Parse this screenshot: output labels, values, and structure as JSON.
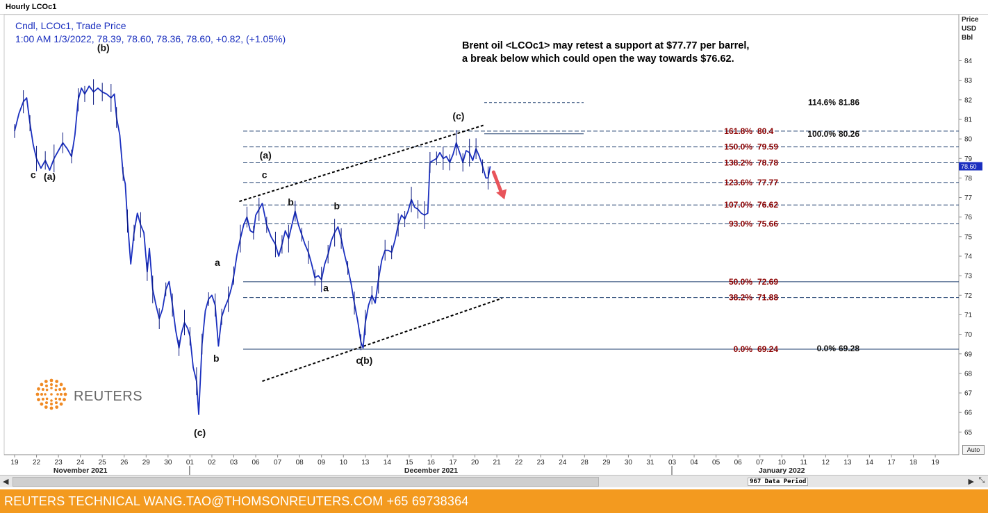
{
  "window": {
    "title": "Hourly LCOc1"
  },
  "legend": {
    "line1": "Cndl, LCOc1, Trade Price",
    "line2": "1:00 AM 1/3/2022, 78.39, 78.60, 78.36, 78.60, +0.82, (+1.05%)"
  },
  "commentary": {
    "line1": "Brent oil <LCOc1> may retest a support at $77.77 per barrel,",
    "line2": "a break below which could open the way towards $76.62."
  },
  "price_axis": {
    "label1": "Price",
    "label2": "USD",
    "label3": "Bbl",
    "last_value": "78.60"
  },
  "logo": {
    "text": "REUTERS"
  },
  "scrollbar": {
    "data_period": "967 Data Period",
    "left_arrow": "◀",
    "right_arrow": "▶",
    "resize": "⤡"
  },
  "footer": {
    "text": "REUTERS TECHNICAL  WANG.TAO@THOMSONREUTERS.COM  +65 69738364"
  },
  "auto_button": "Auto",
  "colors": {
    "series": "#1a2fbf",
    "projection_text": "#8b0000",
    "arrow": "#e8545a",
    "grid_line": "#1f3f6f",
    "footer_bg": "#f39a1f"
  },
  "chart_data": {
    "type": "candlestick-line",
    "title": "Hourly LCOc1",
    "ylabel": "Price USD Bbl",
    "ylim": [
      64.5,
      85.4
    ],
    "y_ticks": [
      65,
      66,
      67,
      68,
      69,
      70,
      71,
      72,
      73,
      74,
      75,
      76,
      77,
      78,
      79,
      80,
      81,
      82,
      83,
      84
    ],
    "x_days": [
      "19",
      "22",
      "23",
      "24",
      "25",
      "26",
      "29",
      "30",
      "01",
      "02",
      "03",
      "06",
      "07",
      "08",
      "09",
      "10",
      "13",
      "14",
      "15",
      "16",
      "17",
      "20",
      "21",
      "22",
      "23",
      "24",
      "28",
      "29",
      "30",
      "31",
      "03",
      "04",
      "05",
      "06",
      "07",
      "10",
      "11",
      "12",
      "13",
      "14",
      "17",
      "18",
      "19"
    ],
    "month_labels": [
      {
        "text": "November 2021",
        "at_day_index": 3
      },
      {
        "text": "December 2021",
        "at_day_index": 19
      },
      {
        "text": "January 2022",
        "at_day_index": 35
      }
    ],
    "month_separator_indexes": [
      8,
      30
    ],
    "series": [
      {
        "name": "LCOc1",
        "points": [
          [
            0,
            80.4
          ],
          [
            0.2,
            81.3
          ],
          [
            0.4,
            81.9
          ],
          [
            0.55,
            82.1
          ],
          [
            0.7,
            80.8
          ],
          [
            0.85,
            79.7
          ],
          [
            1.0,
            79.0
          ],
          [
            1.2,
            78.5
          ],
          [
            1.4,
            78.9
          ],
          [
            1.6,
            78.4
          ],
          [
            1.8,
            79.0
          ],
          [
            2.0,
            79.4
          ],
          [
            2.2,
            79.8
          ],
          [
            2.4,
            79.5
          ],
          [
            2.6,
            79.1
          ],
          [
            2.75,
            80.2
          ],
          [
            2.9,
            82.0
          ],
          [
            3.05,
            82.6
          ],
          [
            3.2,
            82.3
          ],
          [
            3.4,
            82.7
          ],
          [
            3.6,
            82.4
          ],
          [
            3.8,
            82.6
          ],
          [
            4.0,
            82.4
          ],
          [
            4.2,
            82.3
          ],
          [
            4.4,
            82.1
          ],
          [
            4.55,
            82.3
          ],
          [
            4.65,
            81.1
          ],
          [
            4.8,
            80.2
          ],
          [
            4.95,
            78.2
          ],
          [
            5.05,
            77.7
          ],
          [
            5.15,
            75.8
          ],
          [
            5.3,
            73.6
          ],
          [
            5.45,
            75.2
          ],
          [
            5.6,
            76.2
          ],
          [
            5.75,
            75.6
          ],
          [
            5.9,
            75.2
          ],
          [
            6.05,
            73.2
          ],
          [
            6.15,
            74.4
          ],
          [
            6.3,
            72.3
          ],
          [
            6.45,
            71.5
          ],
          [
            6.6,
            70.8
          ],
          [
            6.75,
            71.3
          ],
          [
            6.9,
            72.3
          ],
          [
            7.05,
            72.7
          ],
          [
            7.2,
            71.5
          ],
          [
            7.35,
            70.2
          ],
          [
            7.5,
            69.3
          ],
          [
            7.6,
            70.0
          ],
          [
            7.75,
            70.6
          ],
          [
            7.9,
            70.3
          ],
          [
            8.0,
            69.9
          ],
          [
            8.15,
            68.3
          ],
          [
            8.3,
            67.6
          ],
          [
            8.4,
            65.9
          ],
          [
            8.55,
            69.5
          ],
          [
            8.7,
            71.2
          ],
          [
            8.85,
            71.8
          ],
          [
            9.0,
            72.0
          ],
          [
            9.15,
            71.5
          ],
          [
            9.3,
            69.4
          ],
          [
            9.45,
            70.9
          ],
          [
            9.6,
            71.4
          ],
          [
            9.75,
            71.8
          ],
          [
            9.9,
            72.4
          ],
          [
            10.0,
            73.0
          ],
          [
            10.15,
            74.1
          ],
          [
            10.3,
            74.9
          ],
          [
            10.45,
            75.6
          ],
          [
            10.6,
            76.0
          ],
          [
            10.75,
            75.3
          ],
          [
            10.9,
            75.2
          ],
          [
            11.0,
            76.1
          ],
          [
            11.15,
            76.4
          ],
          [
            11.3,
            76.7
          ],
          [
            11.5,
            75.6
          ],
          [
            11.7,
            75.0
          ],
          [
            11.9,
            74.6
          ],
          [
            12.05,
            74.0
          ],
          [
            12.2,
            74.6
          ],
          [
            12.35,
            75.3
          ],
          [
            12.5,
            74.9
          ],
          [
            12.65,
            75.6
          ],
          [
            12.8,
            76.3
          ],
          [
            12.95,
            75.6
          ],
          [
            13.1,
            75.1
          ],
          [
            13.25,
            74.6
          ],
          [
            13.4,
            74.2
          ],
          [
            13.55,
            73.6
          ],
          [
            13.7,
            72.9
          ],
          [
            13.85,
            73.0
          ],
          [
            14.0,
            72.8
          ],
          [
            14.15,
            73.6
          ],
          [
            14.3,
            74.1
          ],
          [
            14.45,
            74.8
          ],
          [
            14.6,
            75.2
          ],
          [
            14.75,
            75.5
          ],
          [
            14.9,
            74.9
          ],
          [
            15.05,
            74.1
          ],
          [
            15.2,
            73.4
          ],
          [
            15.35,
            72.6
          ],
          [
            15.5,
            71.6
          ],
          [
            15.65,
            70.7
          ],
          [
            15.8,
            69.6
          ],
          [
            15.9,
            69.3
          ],
          [
            16.0,
            70.6
          ],
          [
            16.15,
            71.5
          ],
          [
            16.3,
            72.0
          ],
          [
            16.45,
            71.6
          ],
          [
            16.6,
            72.8
          ],
          [
            16.75,
            73.8
          ],
          [
            16.9,
            74.3
          ],
          [
            17.05,
            74.3
          ],
          [
            17.2,
            74.2
          ],
          [
            17.35,
            74.8
          ],
          [
            17.5,
            75.6
          ],
          [
            17.65,
            76.1
          ],
          [
            17.8,
            75.9
          ],
          [
            17.95,
            76.3
          ],
          [
            18.1,
            76.9
          ],
          [
            18.25,
            76.5
          ],
          [
            18.4,
            76.4
          ],
          [
            18.55,
            76.2
          ],
          [
            18.7,
            76.1
          ],
          [
            18.85,
            76.2
          ],
          [
            18.95,
            78.8
          ],
          [
            19.1,
            78.9
          ],
          [
            19.25,
            79.0
          ],
          [
            19.4,
            79.3
          ],
          [
            19.55,
            79.0
          ],
          [
            19.7,
            79.1
          ],
          [
            19.85,
            78.8
          ],
          [
            20.0,
            79.2
          ],
          [
            20.15,
            79.8
          ],
          [
            20.3,
            79.3
          ],
          [
            20.45,
            78.8
          ],
          [
            20.6,
            79.4
          ],
          [
            20.75,
            79.3
          ],
          [
            20.9,
            78.9
          ],
          [
            21.05,
            79.5
          ],
          [
            21.2,
            79.1
          ],
          [
            21.35,
            78.6
          ],
          [
            21.5,
            78.0
          ],
          [
            21.6,
            78.0
          ],
          [
            21.7,
            78.6
          ]
        ]
      }
    ],
    "fib_levels": [
      {
        "percent": "161.8%",
        "value": "80.4",
        "price": 80.4
      },
      {
        "percent": "150.0%",
        "value": "79.59",
        "price": 79.59
      },
      {
        "percent": "138.2%",
        "value": "78.78",
        "price": 78.78
      },
      {
        "percent": "123.6%",
        "value": "77.77",
        "price": 77.77
      },
      {
        "percent": "107.0%",
        "value": "76.62",
        "price": 76.62
      },
      {
        "percent": "93.0%",
        "value": "75.66",
        "price": 75.66
      },
      {
        "percent": "50.0%",
        "value": "72.69",
        "price": 72.69
      },
      {
        "percent": "38.2%",
        "value": "71.88",
        "price": 71.88
      },
      {
        "percent": "0.0%",
        "value": "69.24",
        "price": 69.24
      }
    ],
    "ext_levels": [
      {
        "percent": "114.6%",
        "value": "81.86",
        "price": 81.86
      },
      {
        "percent": "100.0%",
        "value": "80.26",
        "price": 80.26
      },
      {
        "percent": "0.0%",
        "value": "69.28",
        "price": 69.28
      }
    ],
    "wave_labels": [
      {
        "text": "(b)",
        "x": 4.05,
        "y": 84.5
      },
      {
        "text": "c",
        "x": 0.85,
        "y": 78.0
      },
      {
        "text": "(a)",
        "x": 1.6,
        "y": 77.9
      },
      {
        "text": "(c)",
        "x": 8.45,
        "y": 64.8
      },
      {
        "text": "a",
        "x": 9.25,
        "y": 73.5
      },
      {
        "text": "b",
        "x": 9.2,
        "y": 68.6
      },
      {
        "text": "(a)",
        "x": 11.45,
        "y": 79.0
      },
      {
        "text": "c",
        "x": 11.4,
        "y": 78.0
      },
      {
        "text": "b",
        "x": 12.6,
        "y": 76.6
      },
      {
        "text": "a",
        "x": 14.2,
        "y": 72.2
      },
      {
        "text": "b",
        "x": 14.7,
        "y": 76.4
      },
      {
        "text": "c",
        "x": 15.7,
        "y": 68.5
      },
      {
        "text": "(b)",
        "x": 16.05,
        "y": 68.5
      },
      {
        "text": "(c)",
        "x": 20.25,
        "y": 81.0
      }
    ],
    "trend_lines": [
      {
        "from": [
          10.25,
          76.8
        ],
        "to": [
          21.4,
          80.7
        ]
      },
      {
        "from": [
          11.3,
          67.6
        ],
        "to": [
          22.25,
          71.85
        ]
      }
    ]
  }
}
